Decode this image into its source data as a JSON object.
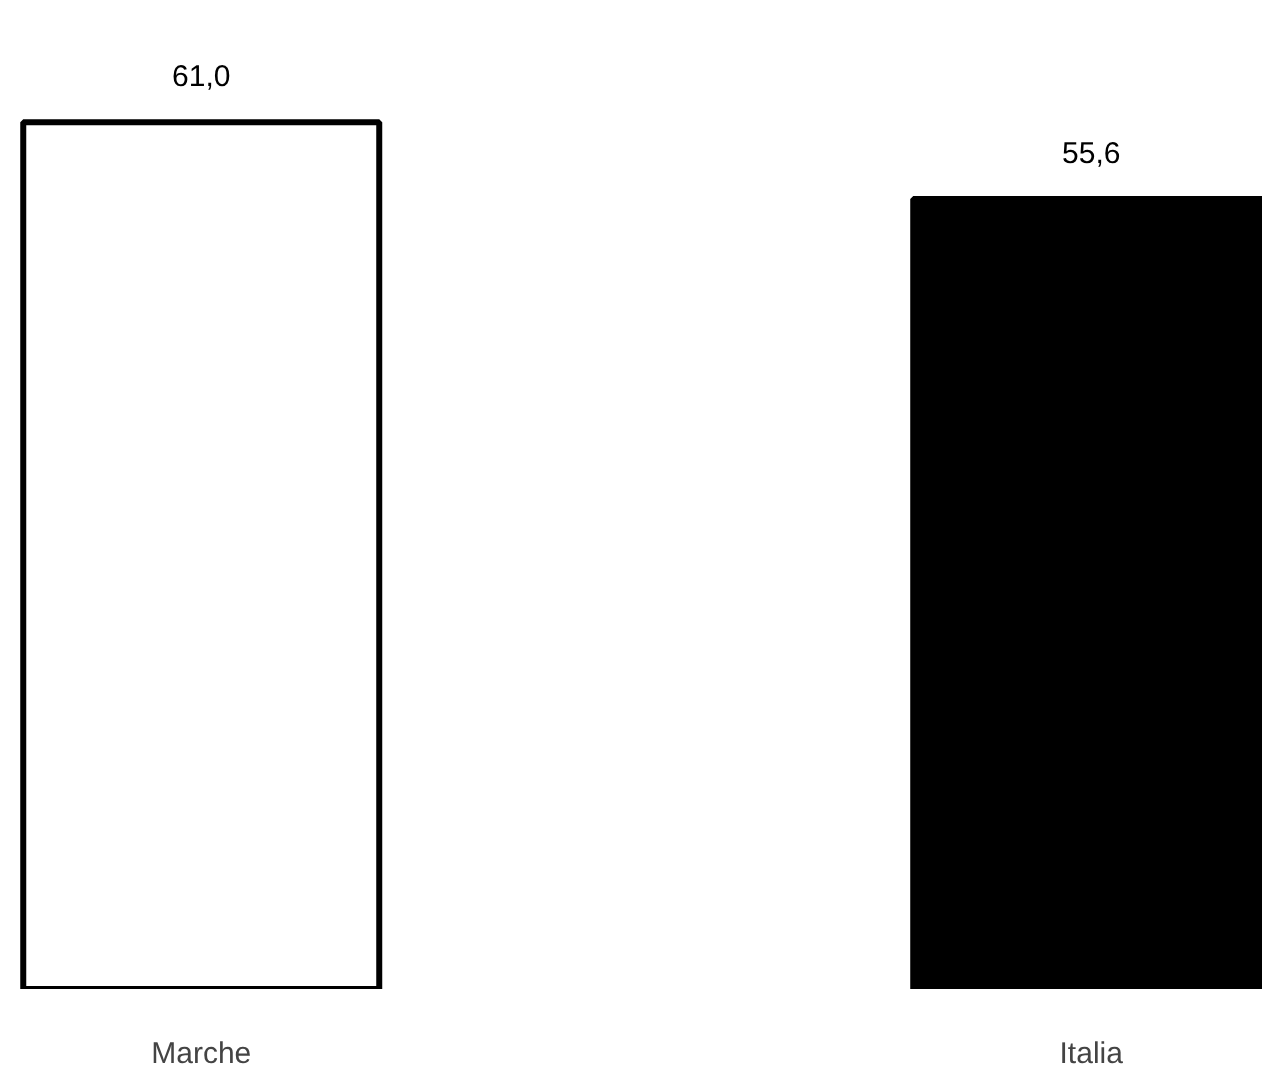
{
  "chart_data": {
    "type": "bar",
    "categories": [
      "Marche",
      "Italia"
    ],
    "values": [
      61.0,
      55.6
    ],
    "colors": [
      "#ffffff",
      "#000000"
    ],
    "value_labels": [
      "61,0",
      "55,6"
    ],
    "grid": false
  }
}
